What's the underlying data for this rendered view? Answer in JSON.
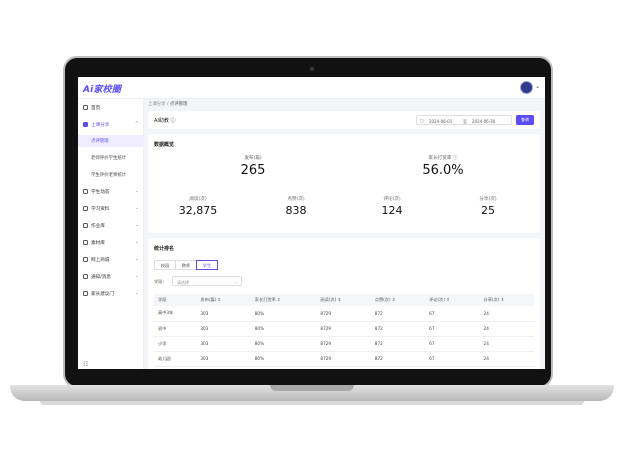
{
  "app": {
    "logo": "Ai家校圈"
  },
  "topbar": {
    "caret": "⌄"
  },
  "sidebar": {
    "items": [
      {
        "label": "首页",
        "icon": "home-icon"
      },
      {
        "label": "上课分享",
        "icon": "share-icon",
        "active": true,
        "chevron": "^"
      },
      {
        "label": "学生动态",
        "icon": "gear-icon",
        "chevron": "⌄"
      },
      {
        "label": "学习资料",
        "icon": "gear-icon",
        "chevron": "⌄"
      },
      {
        "label": "作业库",
        "icon": "doc-icon",
        "chevron": "⌄"
      },
      {
        "label": "素材库",
        "icon": "folder-icon",
        "chevron": "⌄"
      },
      {
        "label": "网上商城",
        "icon": "bag-icon",
        "chevron": "⌄"
      },
      {
        "label": "通知/消息",
        "icon": "bell-icon",
        "chevron": "⌄"
      },
      {
        "label": "家长建议门",
        "icon": "gear-icon",
        "chevron": "⌄"
      }
    ],
    "sub_items": [
      {
        "label": "点评管理",
        "selected": true
      },
      {
        "label": "老师评价学生统计"
      },
      {
        "label": "学生评价老师统计"
      }
    ],
    "collapse_icon": "☷"
  },
  "breadcrumb": {
    "parent": "上课分享",
    "separator": "/",
    "current": "点评管理"
  },
  "filter": {
    "title": "AI助教 ⓘ",
    "calendar_icon": "▢",
    "start_date": "2024-06-01",
    "separator": "至",
    "end_date": "2024-06-30",
    "query_label": "查询"
  },
  "overview": {
    "title": "数据概览",
    "stats_top": [
      {
        "key": "发布(篇)",
        "value": "265"
      },
      {
        "key": "家长打赏率 ⓘ",
        "value": "56.0%"
      }
    ],
    "stats_bottom": [
      {
        "key": "阅读(次)",
        "value": "32,875"
      },
      {
        "key": "点赞(次)",
        "value": "838"
      },
      {
        "key": "评论(次)",
        "value": "124"
      },
      {
        "key": "分享(次)",
        "value": "25"
      }
    ]
  },
  "stats": {
    "title": "统计排名",
    "tabs": [
      {
        "label": "校园"
      },
      {
        "label": "教师"
      },
      {
        "label": "学生",
        "active": true
      }
    ],
    "grade_label": "学段：",
    "grade_placeholder": "请选择",
    "grade_arrow": "⌄",
    "columns": [
      "学段",
      "发布(篇) ⇕",
      "家长打赏率 ⇕",
      "阅读(次) ⇕",
      "点赞(次) ⇕",
      "评论(次) ⇕",
      "分享(次) ⇕"
    ],
    "rows": [
      [
        "高中3年",
        "303",
        "80%",
        "8729",
        "872",
        "67",
        "24"
      ],
      [
        "初中",
        "303",
        "80%",
        "8729",
        "872",
        "67",
        "24"
      ],
      [
        "小学",
        "303",
        "80%",
        "8729",
        "872",
        "67",
        "24"
      ],
      [
        "幼儿园",
        "303",
        "80%",
        "8729",
        "872",
        "67",
        "24"
      ]
    ]
  }
}
